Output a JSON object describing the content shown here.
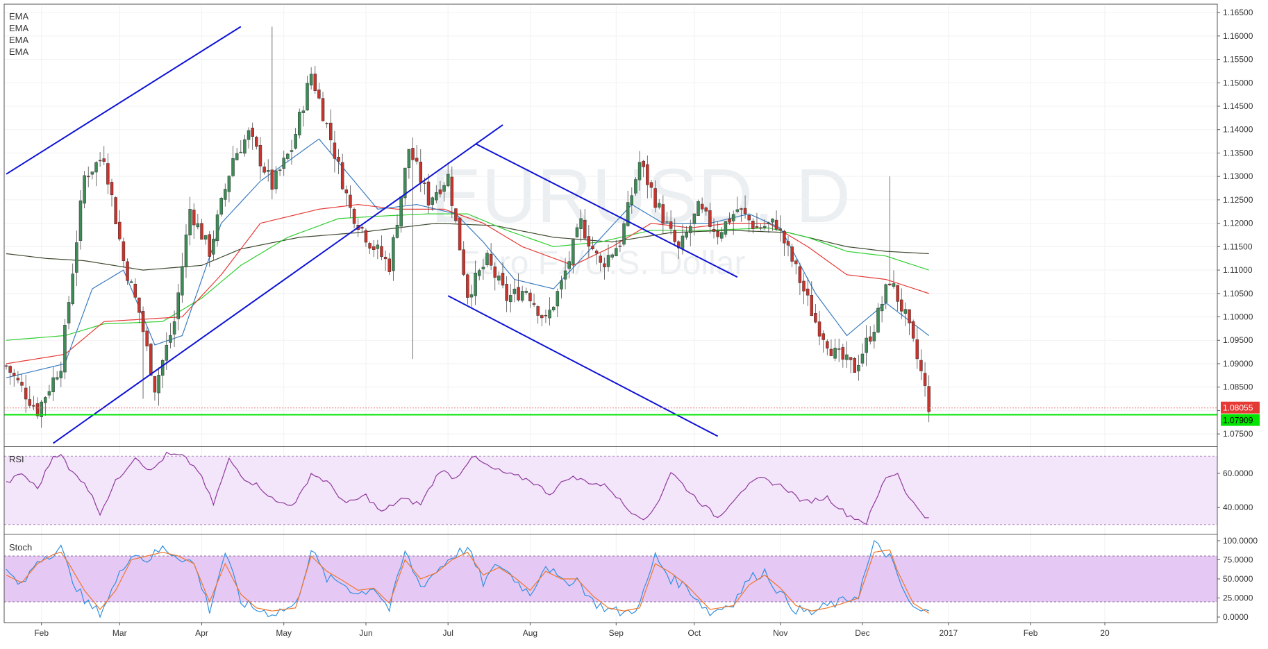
{
  "watermark": {
    "symbol": "EURUSD, D",
    "name": "Euro Fx/U.S. Dollar"
  },
  "ema_labels": [
    "EMA",
    "EMA",
    "EMA",
    "EMA"
  ],
  "price_tags": [
    {
      "value": "1.08055",
      "color": "#e53935"
    },
    {
      "value": "1.07909",
      "color": "#00e400"
    }
  ],
  "pane_labels": {
    "rsi": "RSI",
    "stoch": "Stoch"
  },
  "colors": {
    "up": "#3d8b57",
    "down": "#c8332b",
    "ema_blue": "#3a7bbf",
    "ema_red": "#e53935",
    "ema_green": "#2fcf2f",
    "ema_dark": "#3d4a2e",
    "trendline": "#0d12d6",
    "rsi_line": "#8e3a9c",
    "rsi_fill": "#f3e5fa",
    "stoch_k": "#2f8fe0",
    "stoch_d": "#f0762a",
    "stoch_fill": "#e6c8f5",
    "support": "#00e400"
  },
  "chart_data": [
    {
      "type": "candlestick",
      "title": "EURUSD, D",
      "subtitle": "Euro Fx/U.S. Dollar",
      "x_ticks": [
        "Feb",
        "Mar",
        "Apr",
        "May",
        "Jun",
        "Jul",
        "Aug",
        "Sep",
        "Oct",
        "Nov",
        "Dec",
        "2017",
        "Feb",
        "20"
      ],
      "y_ticks": [
        "1.16500",
        "1.16000",
        "1.15500",
        "1.15000",
        "1.14500",
        "1.14000",
        "1.13500",
        "1.13000",
        "1.12500",
        "1.12000",
        "1.11500",
        "1.11000",
        "1.10500",
        "1.10000",
        "1.09500",
        "1.09000",
        "1.08500",
        "1.08000",
        "1.07500"
      ],
      "ylim": [
        1.0725,
        1.1665
      ],
      "anchors": [
        [
          0,
          1.0895
        ],
        [
          8,
          1.08
        ],
        [
          14,
          1.09
        ],
        [
          20,
          1.13
        ],
        [
          25,
          1.1345
        ],
        [
          30,
          1.112
        ],
        [
          34,
          1.101
        ],
        [
          38,
          1.085
        ],
        [
          43,
          1.099
        ],
        [
          47,
          1.123
        ],
        [
          52,
          1.114
        ],
        [
          58,
          1.134
        ],
        [
          62,
          1.139
        ],
        [
          68,
          1.128
        ],
        [
          73,
          1.136
        ],
        [
          78,
          1.152
        ],
        [
          83,
          1.138
        ],
        [
          88,
          1.123
        ],
        [
          93,
          1.116
        ],
        [
          98,
          1.111
        ],
        [
          103,
          1.136
        ],
        [
          108,
          1.125
        ],
        [
          113,
          1.13
        ],
        [
          118,
          1.105
        ],
        [
          123,
          1.112
        ],
        [
          128,
          1.104
        ],
        [
          133,
          1.106
        ],
        [
          138,
          1.099
        ],
        [
          142,
          1.107
        ],
        [
          147,
          1.12
        ],
        [
          152,
          1.111
        ],
        [
          157,
          1.116
        ],
        [
          162,
          1.133
        ],
        [
          167,
          1.123
        ],
        [
          172,
          1.114
        ],
        [
          177,
          1.123
        ],
        [
          182,
          1.118
        ],
        [
          187,
          1.123
        ],
        [
          192,
          1.119
        ],
        [
          197,
          1.12
        ],
        [
          202,
          1.11
        ],
        [
          207,
          1.099
        ],
        [
          212,
          1.092
        ],
        [
          217,
          1.089
        ],
        [
          222,
          1.098
        ],
        [
          226,
          1.108
        ],
        [
          230,
          1.1
        ],
        [
          234,
          1.088
        ],
        [
          236,
          1.081
        ]
      ],
      "ema_blue": [
        [
          0,
          1.087
        ],
        [
          15,
          1.09
        ],
        [
          22,
          1.106
        ],
        [
          30,
          1.11
        ],
        [
          38,
          1.094
        ],
        [
          45,
          1.096
        ],
        [
          55,
          1.12
        ],
        [
          65,
          1.129
        ],
        [
          80,
          1.138
        ],
        [
          95,
          1.123
        ],
        [
          105,
          1.124
        ],
        [
          115,
          1.122
        ],
        [
          122,
          1.116
        ],
        [
          130,
          1.108
        ],
        [
          140,
          1.106
        ],
        [
          150,
          1.115
        ],
        [
          160,
          1.124
        ],
        [
          168,
          1.12
        ],
        [
          180,
          1.12
        ],
        [
          190,
          1.122
        ],
        [
          198,
          1.119
        ],
        [
          207,
          1.105
        ],
        [
          215,
          1.096
        ],
        [
          225,
          1.103
        ],
        [
          236,
          1.096
        ]
      ],
      "ema_red": [
        [
          0,
          1.09
        ],
        [
          15,
          1.092
        ],
        [
          25,
          1.099
        ],
        [
          35,
          1.0995
        ],
        [
          45,
          1.1
        ],
        [
          55,
          1.109
        ],
        [
          65,
          1.12
        ],
        [
          80,
          1.123
        ],
        [
          90,
          1.124
        ],
        [
          100,
          1.123
        ],
        [
          112,
          1.123
        ],
        [
          122,
          1.12
        ],
        [
          132,
          1.115
        ],
        [
          145,
          1.111
        ],
        [
          155,
          1.115
        ],
        [
          165,
          1.12
        ],
        [
          175,
          1.119
        ],
        [
          185,
          1.12
        ],
        [
          195,
          1.12
        ],
        [
          205,
          1.115
        ],
        [
          215,
          1.109
        ],
        [
          225,
          1.108
        ],
        [
          236,
          1.105
        ]
      ],
      "ema_green": [
        [
          0,
          1.095
        ],
        [
          15,
          1.096
        ],
        [
          25,
          1.0985
        ],
        [
          40,
          1.099
        ],
        [
          50,
          1.104
        ],
        [
          60,
          1.111
        ],
        [
          72,
          1.117
        ],
        [
          85,
          1.121
        ],
        [
          95,
          1.1215
        ],
        [
          108,
          1.122
        ],
        [
          118,
          1.122
        ],
        [
          128,
          1.1185
        ],
        [
          140,
          1.115
        ],
        [
          152,
          1.116
        ],
        [
          165,
          1.1185
        ],
        [
          180,
          1.1185
        ],
        [
          195,
          1.119
        ],
        [
          205,
          1.117
        ],
        [
          215,
          1.114
        ],
        [
          225,
          1.113
        ],
        [
          236,
          1.11
        ]
      ],
      "ema_dark": [
        [
          0,
          1.1135
        ],
        [
          10,
          1.1125
        ],
        [
          20,
          1.112
        ],
        [
          35,
          1.11
        ],
        [
          50,
          1.111
        ],
        [
          60,
          1.1145
        ],
        [
          75,
          1.117
        ],
        [
          90,
          1.118
        ],
        [
          110,
          1.12
        ],
        [
          125,
          1.1195
        ],
        [
          140,
          1.117
        ],
        [
          155,
          1.116
        ],
        [
          170,
          1.118
        ],
        [
          185,
          1.1185
        ],
        [
          200,
          1.118
        ],
        [
          215,
          1.115
        ],
        [
          225,
          1.114
        ],
        [
          236,
          1.1135
        ]
      ],
      "trendlines": [
        [
          [
            0,
            1.1305
          ],
          [
            60,
            1.162
          ]
        ],
        [
          [
            12,
            1.073
          ],
          [
            127,
            1.141
          ]
        ],
        [
          [
            113,
            1.1045
          ],
          [
            182,
            1.0745
          ]
        ],
        [
          [
            120,
            1.137
          ],
          [
            187,
            1.1085
          ]
        ]
      ],
      "support_level": 1.07909,
      "last_level": 1.08055
    },
    {
      "type": "line",
      "title": "RSI",
      "y_ticks": [
        "60.0000",
        "40.0000"
      ],
      "ylim": [
        25,
        75
      ],
      "bands": [
        30,
        70
      ],
      "anchors": [
        [
          0,
          54
        ],
        [
          4,
          60
        ],
        [
          8,
          51
        ],
        [
          12,
          70
        ],
        [
          14,
          72
        ],
        [
          16,
          62
        ],
        [
          20,
          55
        ],
        [
          24,
          37
        ],
        [
          28,
          55
        ],
        [
          33,
          70
        ],
        [
          37,
          61
        ],
        [
          41,
          71
        ],
        [
          45,
          70
        ],
        [
          49,
          62
        ],
        [
          53,
          42
        ],
        [
          57,
          68
        ],
        [
          61,
          57
        ],
        [
          65,
          52
        ],
        [
          69,
          43
        ],
        [
          74,
          42
        ],
        [
          78,
          60
        ],
        [
          82,
          55
        ],
        [
          87,
          42
        ],
        [
          92,
          47
        ],
        [
          96,
          37
        ],
        [
          101,
          45
        ],
        [
          106,
          42
        ],
        [
          111,
          62
        ],
        [
          115,
          57
        ],
        [
          119,
          70
        ],
        [
          124,
          63
        ],
        [
          129,
          59
        ],
        [
          134,
          56
        ],
        [
          139,
          48
        ],
        [
          144,
          58
        ],
        [
          149,
          55
        ],
        [
          154,
          52
        ],
        [
          159,
          39
        ],
        [
          164,
          33
        ],
        [
          167,
          45
        ],
        [
          170,
          61
        ],
        [
          174,
          51
        ],
        [
          178,
          42
        ],
        [
          182,
          34
        ],
        [
          188,
          50
        ],
        [
          193,
          57
        ],
        [
          199,
          52
        ],
        [
          204,
          43
        ],
        [
          210,
          46
        ],
        [
          215,
          36
        ],
        [
          220,
          31
        ],
        [
          225,
          58
        ],
        [
          228,
          60
        ],
        [
          231,
          45
        ],
        [
          236,
          33
        ]
      ]
    },
    {
      "type": "line",
      "title": "Stoch",
      "y_ticks": [
        "100.0000",
        "75.0000",
        "50.0000",
        "25.0000",
        "0.0000"
      ],
      "ylim": [
        0,
        100
      ],
      "bands": [
        20,
        80
      ],
      "k_anchors": [
        [
          0,
          60
        ],
        [
          4,
          40
        ],
        [
          8,
          75
        ],
        [
          12,
          85
        ],
        [
          14,
          90
        ],
        [
          16,
          60
        ],
        [
          20,
          20
        ],
        [
          24,
          5
        ],
        [
          28,
          45
        ],
        [
          32,
          85
        ],
        [
          36,
          75
        ],
        [
          40,
          90
        ],
        [
          44,
          80
        ],
        [
          48,
          70
        ],
        [
          52,
          10
        ],
        [
          56,
          85
        ],
        [
          60,
          20
        ],
        [
          64,
          10
        ],
        [
          68,
          5
        ],
        [
          74,
          15
        ],
        [
          78,
          88
        ],
        [
          82,
          50
        ],
        [
          86,
          45
        ],
        [
          90,
          30
        ],
        [
          94,
          40
        ],
        [
          98,
          10
        ],
        [
          102,
          85
        ],
        [
          106,
          40
        ],
        [
          110,
          60
        ],
        [
          114,
          80
        ],
        [
          118,
          90
        ],
        [
          122,
          45
        ],
        [
          126,
          70
        ],
        [
          130,
          50
        ],
        [
          134,
          30
        ],
        [
          138,
          70
        ],
        [
          142,
          45
        ],
        [
          146,
          50
        ],
        [
          150,
          20
        ],
        [
          154,
          10
        ],
        [
          158,
          5
        ],
        [
          162,
          15
        ],
        [
          166,
          80
        ],
        [
          170,
          50
        ],
        [
          174,
          40
        ],
        [
          180,
          5
        ],
        [
          186,
          20
        ],
        [
          190,
          50
        ],
        [
          194,
          60
        ],
        [
          198,
          30
        ],
        [
          202,
          10
        ],
        [
          206,
          5
        ],
        [
          210,
          15
        ],
        [
          214,
          20
        ],
        [
          218,
          30
        ],
        [
          222,
          95
        ],
        [
          226,
          80
        ],
        [
          228,
          50
        ],
        [
          232,
          10
        ],
        [
          236,
          5
        ]
      ],
      "d_anchors": [
        [
          0,
          55
        ],
        [
          4,
          45
        ],
        [
          8,
          70
        ],
        [
          12,
          82
        ],
        [
          14,
          85
        ],
        [
          16,
          70
        ],
        [
          20,
          35
        ],
        [
          24,
          10
        ],
        [
          28,
          35
        ],
        [
          32,
          75
        ],
        [
          36,
          80
        ],
        [
          40,
          85
        ],
        [
          44,
          80
        ],
        [
          48,
          70
        ],
        [
          52,
          20
        ],
        [
          56,
          70
        ],
        [
          60,
          30
        ],
        [
          64,
          12
        ],
        [
          68,
          8
        ],
        [
          74,
          12
        ],
        [
          78,
          80
        ],
        [
          82,
          60
        ],
        [
          86,
          48
        ],
        [
          90,
          35
        ],
        [
          94,
          38
        ],
        [
          98,
          18
        ],
        [
          102,
          75
        ],
        [
          106,
          50
        ],
        [
          110,
          58
        ],
        [
          114,
          75
        ],
        [
          118,
          85
        ],
        [
          122,
          55
        ],
        [
          126,
          65
        ],
        [
          130,
          52
        ],
        [
          134,
          35
        ],
        [
          138,
          60
        ],
        [
          142,
          50
        ],
        [
          146,
          50
        ],
        [
          150,
          28
        ],
        [
          154,
          12
        ],
        [
          158,
          8
        ],
        [
          162,
          12
        ],
        [
          166,
          70
        ],
        [
          170,
          58
        ],
        [
          174,
          42
        ],
        [
          180,
          10
        ],
        [
          186,
          15
        ],
        [
          190,
          42
        ],
        [
          194,
          55
        ],
        [
          198,
          38
        ],
        [
          202,
          15
        ],
        [
          206,
          8
        ],
        [
          210,
          12
        ],
        [
          214,
          18
        ],
        [
          218,
          25
        ],
        [
          222,
          85
        ],
        [
          226,
          88
        ],
        [
          228,
          60
        ],
        [
          232,
          18
        ],
        [
          236,
          5
        ]
      ]
    }
  ]
}
